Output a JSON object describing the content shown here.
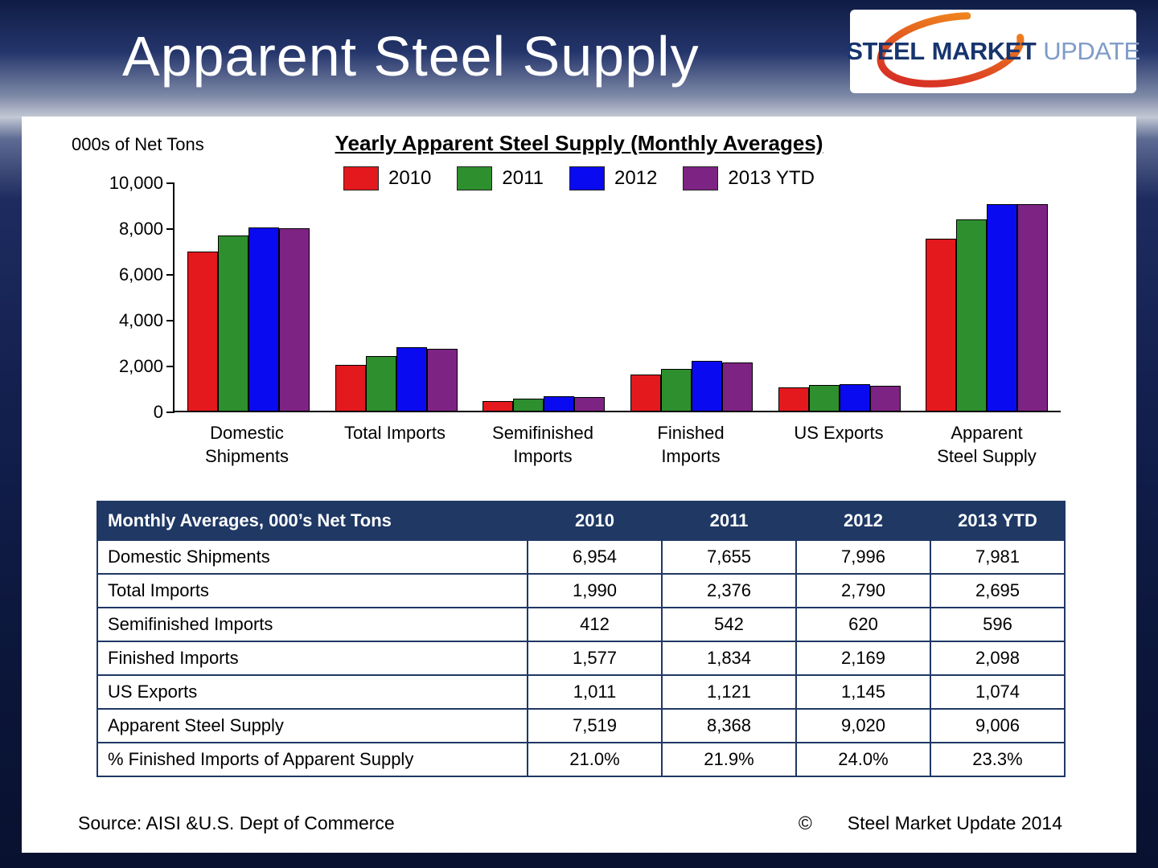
{
  "page": {
    "title": "Apparent Steel Supply"
  },
  "logo": {
    "word1": "STEEL",
    "word2": "MARKET",
    "word3": "UPDATE"
  },
  "chart_data": {
    "type": "bar",
    "title": "Yearly Apparent Steel Supply (Monthly Averages)",
    "units_label": "000s of Net Tons",
    "categories": [
      "Domestic Shipments",
      "Total Imports",
      "Semifinished Imports",
      "Finished Imports",
      "US Exports",
      "Apparent Steel Supply"
    ],
    "series": [
      {
        "name": "2010",
        "color": "#e3191d",
        "values": [
          6954,
          1990,
          412,
          1577,
          1011,
          7519
        ]
      },
      {
        "name": "2011",
        "color": "#2e8f2e",
        "values": [
          7655,
          2376,
          542,
          1834,
          1121,
          8368
        ]
      },
      {
        "name": "2012",
        "color": "#0a0af0",
        "values": [
          7996,
          2790,
          620,
          2169,
          1145,
          9020
        ]
      },
      {
        "name": "2013 YTD",
        "color": "#7d2383",
        "values": [
          7981,
          2695,
          596,
          2098,
          1074,
          9006
        ]
      }
    ],
    "ylim": [
      0,
      10000
    ],
    "ytick_labels": [
      "10,000",
      "8,000",
      "6,000",
      "4,000",
      "2,000",
      "0"
    ],
    "grid": false,
    "legend_position": "top-center"
  },
  "table": {
    "header": [
      "Monthly Averages, 000’s Net Tons",
      "2010",
      "2011",
      "2012",
      "2013 YTD"
    ],
    "rows": [
      [
        "Domestic Shipments",
        "6,954",
        "7,655",
        "7,996",
        "7,981"
      ],
      [
        "Total Imports",
        "1,990",
        "2,376",
        "2,790",
        "2,695"
      ],
      [
        "Semifinished Imports",
        "412",
        "542",
        "620",
        "596"
      ],
      [
        "Finished Imports",
        "1,577",
        "1,834",
        "2,169",
        "2,098"
      ],
      [
        "US Exports",
        "1,011",
        "1,121",
        "1,145",
        "1,074"
      ],
      [
        "Apparent Steel Supply",
        "7,519",
        "8,368",
        "9,020",
        "9,006"
      ],
      [
        "% Finished Imports of Apparent Supply",
        "21.0%",
        "21.9%",
        "24.0%",
        "23.3%"
      ]
    ]
  },
  "footer": {
    "source": "Source:  AISI &U.S. Dept of Commerce",
    "copyright_symbol": "©",
    "copyright_text": "Steel Market Update 2014"
  }
}
